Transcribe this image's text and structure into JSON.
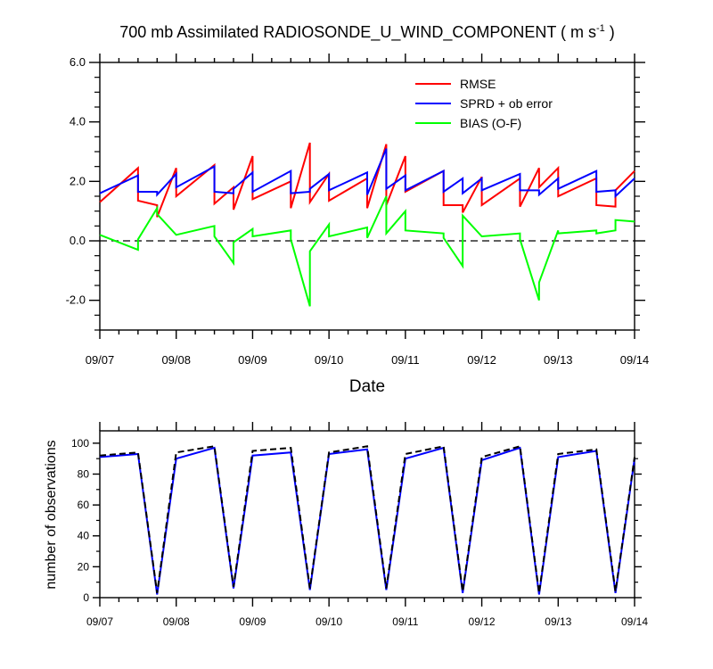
{
  "chart_data": [
    {
      "type": "line",
      "title": "700 mb Assimilated RADIOSONDE_U_WIND_COMPONENT ( m s",
      "title_superscript": "-1",
      "title_suffix": " )",
      "xlabel": "Date",
      "ylabel": "",
      "ylim": [
        -3.0,
        6.0
      ],
      "xlim": [
        0,
        7
      ],
      "x_tick_labels": [
        "09/07",
        "09/08",
        "09/09",
        "09/10",
        "09/11",
        "09/12",
        "09/13",
        "09/14"
      ],
      "y_ticks": [
        -2.0,
        0.0,
        2.0,
        4.0,
        6.0
      ],
      "y_tick_labels": [
        "-2.0",
        "0.0",
        "2.0",
        "4.0",
        "6.0"
      ],
      "zero_line": "dashed",
      "legend_position": "top-right",
      "series": [
        {
          "name": "RMSE",
          "color": "#ff0000",
          "x": [
            0.0,
            0.5,
            0.5,
            0.75,
            0.75,
            1.0,
            1.0,
            1.5,
            1.5,
            1.75,
            1.75,
            2.0,
            2.0,
            2.5,
            2.5,
            2.75,
            2.75,
            3.0,
            3.0,
            3.5,
            3.5,
            3.75,
            3.75,
            4.0,
            4.0,
            4.5,
            4.5,
            4.75,
            4.75,
            5.0,
            5.0,
            5.5,
            5.5,
            5.75,
            5.75,
            6.0,
            6.0,
            6.5,
            6.5,
            6.75,
            6.75,
            7.0
          ],
          "y": [
            1.3,
            2.45,
            1.35,
            1.2,
            0.8,
            2.45,
            1.5,
            2.55,
            1.25,
            1.8,
            1.05,
            2.85,
            1.4,
            2.0,
            1.1,
            3.3,
            1.3,
            2.25,
            1.35,
            2.1,
            1.1,
            3.25,
            1.2,
            2.85,
            1.65,
            2.35,
            1.2,
            1.2,
            0.95,
            2.15,
            1.2,
            2.1,
            1.15,
            2.45,
            1.8,
            2.45,
            1.5,
            2.1,
            1.2,
            1.15,
            1.7,
            2.35
          ]
        },
        {
          "name": "SPRD + ob error",
          "color": "#0000ff",
          "x": [
            0.0,
            0.5,
            0.5,
            0.75,
            0.75,
            1.0,
            1.0,
            1.5,
            1.5,
            1.75,
            1.75,
            2.0,
            2.0,
            2.5,
            2.5,
            2.75,
            2.75,
            3.0,
            3.0,
            3.5,
            3.5,
            3.75,
            3.75,
            4.0,
            4.0,
            4.5,
            4.5,
            4.75,
            4.75,
            5.0,
            5.0,
            5.5,
            5.5,
            5.75,
            5.75,
            6.0,
            6.0,
            6.5,
            6.5,
            6.75,
            6.75,
            7.0
          ],
          "y": [
            1.6,
            2.2,
            1.65,
            1.65,
            1.55,
            2.25,
            1.8,
            2.5,
            1.65,
            1.6,
            1.75,
            2.3,
            1.65,
            2.35,
            1.6,
            1.65,
            1.75,
            2.25,
            1.7,
            2.3,
            1.55,
            3.1,
            1.75,
            2.2,
            1.7,
            2.35,
            1.65,
            2.1,
            1.6,
            2.1,
            1.7,
            2.25,
            1.7,
            1.7,
            1.55,
            2.1,
            1.75,
            2.35,
            1.65,
            1.7,
            1.5,
            2.1
          ]
        },
        {
          "name": "BIAS (O-F)",
          "color": "#00ff00",
          "x": [
            0.0,
            0.5,
            0.5,
            0.75,
            0.75,
            1.0,
            1.0,
            1.5,
            1.5,
            1.75,
            1.75,
            2.0,
            2.0,
            2.5,
            2.5,
            2.75,
            2.75,
            3.0,
            3.0,
            3.5,
            3.5,
            3.75,
            3.75,
            4.0,
            4.0,
            4.5,
            4.5,
            4.75,
            4.75,
            5.0,
            5.0,
            5.5,
            5.5,
            5.75,
            5.75,
            6.0,
            6.0,
            6.5,
            6.5,
            6.75,
            6.75,
            7.0
          ],
          "y": [
            0.2,
            -0.3,
            0.05,
            1.1,
            0.9,
            0.2,
            0.2,
            0.5,
            0.15,
            -0.75,
            -0.05,
            0.4,
            0.15,
            0.35,
            0.05,
            -2.2,
            -0.35,
            0.55,
            0.15,
            0.45,
            0.1,
            1.5,
            0.25,
            1.0,
            0.35,
            0.25,
            0.1,
            -0.85,
            0.85,
            0.15,
            0.15,
            0.25,
            0.05,
            -2.0,
            -1.4,
            0.35,
            0.25,
            0.35,
            0.25,
            0.35,
            0.7,
            0.65
          ]
        }
      ]
    },
    {
      "type": "line",
      "title": "",
      "xlabel": "",
      "ylabel": "number of observations",
      "ylim": [
        0,
        108
      ],
      "xlim": [
        0,
        7
      ],
      "x_tick_labels": [
        "09/07",
        "09/08",
        "09/09",
        "09/10",
        "09/11",
        "09/12",
        "09/13",
        "09/14"
      ],
      "y_ticks": [
        0,
        20,
        40,
        60,
        80,
        100
      ],
      "y_tick_labels": [
        "0",
        "20",
        "40",
        "60",
        "80",
        "100"
      ],
      "series": [
        {
          "name": "",
          "color": "#0000ff",
          "style": "solid",
          "x": [
            0.0,
            0.5,
            0.75,
            1.0,
            1.5,
            1.75,
            2.0,
            2.5,
            2.75,
            3.0,
            3.5,
            3.75,
            4.0,
            4.5,
            4.75,
            5.0,
            5.5,
            5.75,
            6.0,
            6.5,
            6.75,
            7.0
          ],
          "y": [
            91,
            93,
            2,
            90,
            97,
            6,
            92,
            94,
            5,
            93,
            96,
            5,
            90,
            97,
            3,
            89,
            97,
            2,
            91,
            95,
            3,
            90
          ]
        },
        {
          "name": "",
          "color": "#000000",
          "style": "dashed",
          "x": [
            0.0,
            0.5,
            0.75,
            1.0,
            1.5,
            1.75,
            2.0,
            2.5,
            2.75,
            3.0,
            3.5,
            3.75,
            4.0,
            4.5,
            4.75,
            5.0,
            5.5,
            5.75,
            6.0,
            6.5,
            6.75,
            7.0
          ],
          "y": [
            92,
            94,
            3,
            94,
            98,
            7,
            95,
            97,
            6,
            94,
            98,
            6,
            93,
            98,
            4,
            91,
            98,
            3,
            93,
            96,
            4,
            91
          ]
        }
      ]
    }
  ]
}
